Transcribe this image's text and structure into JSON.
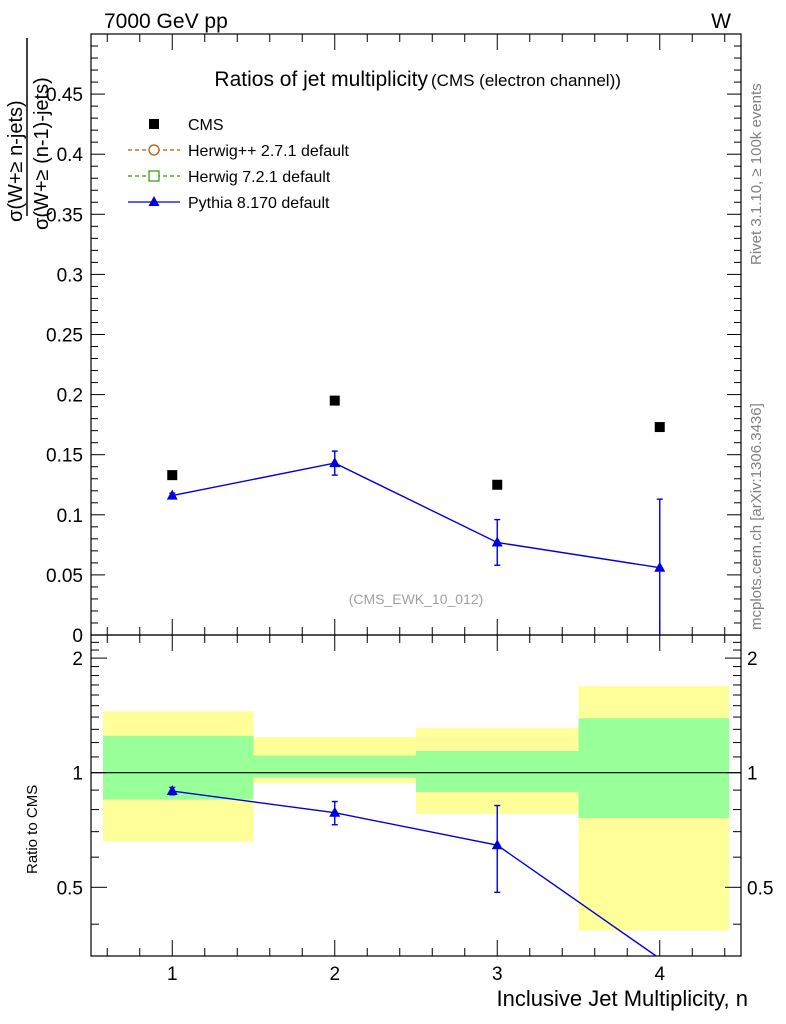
{
  "header": {
    "energy_label": "7000 GeV pp",
    "process_label": "W"
  },
  "side_labels": {
    "rivet": "Rivet 3.1.10, ≥ 100k events",
    "mcplots": "mcplots.cern.ch [arXiv:1306.3436]"
  },
  "chart_data": [
    {
      "type": "scatter",
      "title": "Ratios of jet multiplicity",
      "subtitle": "(CMS (electron channel))",
      "ylabel_numerator": "σ(W+≥ n-jets)",
      "ylabel_denominator": "σ(W+≥ (n-1)-jets)",
      "xlabel": "",
      "xlim": [
        0.5,
        4.5
      ],
      "ylim": [
        0,
        0.5
      ],
      "yticks": [
        0,
        0.05,
        0.1,
        0.15,
        0.2,
        0.25,
        0.3,
        0.35,
        0.4,
        0.45
      ],
      "ytick_labels": [
        "0",
        "0.05",
        "0.1",
        "0.15",
        "0.2",
        "0.25",
        "0.3",
        "0.35",
        "0.4",
        "0.45"
      ],
      "analysis_tag": "(CMS_EWK_10_012)",
      "legend": {
        "placement": "top-left",
        "entries": [
          {
            "name": "CMS",
            "color": "#000000",
            "marker": "square"
          },
          {
            "name": "Herwig++ 2.7.1 default",
            "color": "#b35900",
            "marker": "circle-open",
            "dashed": true
          },
          {
            "name": "Herwig 7.2.1 default",
            "color": "#339900",
            "marker": "square-open",
            "dashed": true
          },
          {
            "name": "Pythia 8.170 default",
            "color": "#0000dd",
            "marker": "triangle"
          }
        ]
      },
      "series": [
        {
          "name": "CMS",
          "x": [
            1,
            2,
            3,
            4
          ],
          "y": [
            0.133,
            0.195,
            0.125,
            0.173
          ],
          "color": "#000000"
        },
        {
          "name": "Pythia 8.170 default",
          "x": [
            1,
            2,
            3,
            4
          ],
          "y": [
            0.116,
            0.143,
            0.077,
            0.056
          ],
          "yerr_low": [
            0.002,
            0.01,
            0.019,
            0.056
          ],
          "yerr_high": [
            0.002,
            0.01,
            0.019,
            0.057
          ],
          "color": "#0000dd"
        }
      ]
    },
    {
      "type": "scatter",
      "title": "",
      "ylabel": "Ratio to CMS",
      "xlabel": "Inclusive Jet Multiplicity, n",
      "xlim": [
        0.5,
        4.5
      ],
      "ylim": [
        0.33,
        2.3
      ],
      "xticks": [
        1,
        2,
        3,
        4
      ],
      "xtick_labels": [
        "1",
        "2",
        "3",
        "4"
      ],
      "yticks": [
        0.5,
        1,
        2
      ],
      "ytick_labels": [
        "0.5",
        "1",
        "2"
      ],
      "log_y": true,
      "uncertainty_bands": [
        {
          "x_range": [
            0.5,
            1.5
          ],
          "stat_low": 0.85,
          "stat_high": 1.25,
          "total_low": 0.66,
          "total_high": 1.45
        },
        {
          "x_range": [
            1.5,
            2.5
          ],
          "stat_low": 0.97,
          "stat_high": 1.11,
          "total_low": 0.94,
          "total_high": 1.24
        },
        {
          "x_range": [
            2.5,
            3.5
          ],
          "stat_low": 0.89,
          "stat_high": 1.14,
          "total_low": 0.78,
          "total_high": 1.31
        },
        {
          "x_range": [
            3.5,
            4.5
          ],
          "stat_low": 0.76,
          "stat_high": 1.39,
          "total_low": 0.385,
          "total_high": 1.69
        }
      ],
      "band_colors": {
        "stat": "#99ff99",
        "total": "#ffff99"
      },
      "reference_line": 1,
      "series": [
        {
          "name": "Pythia 8.170 default",
          "x": [
            1,
            2,
            3,
            4
          ],
          "y": [
            0.895,
            0.785,
            0.645,
            0.325
          ],
          "yerr_low": [
            0.02,
            0.055,
            0.16,
            0.0
          ],
          "yerr_high": [
            0.02,
            0.055,
            0.175,
            0.0
          ],
          "color": "#0000dd"
        }
      ]
    }
  ]
}
